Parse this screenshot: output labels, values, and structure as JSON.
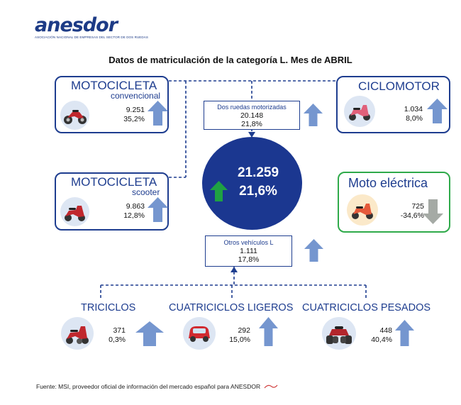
{
  "logo": {
    "name": "anesdor",
    "subtitle": "ASOCIACIÓN NACIONAL DE EMPRESAS DEL SECTOR DE DOS RUEDAS"
  },
  "title": "Datos de matriculación de la categoría L. Mes de ABRIL",
  "center": {
    "total": "21.259",
    "pct": "21,6%",
    "trend": "up",
    "color": "#1b3790"
  },
  "moto_convencional": {
    "title": "MOTOCICLETA",
    "subtitle": "convencional",
    "value": "9.251",
    "pct": "35,2%",
    "trend": "up",
    "icon": "motorcycle-icon"
  },
  "moto_scooter": {
    "title": "MOTOCICLETA",
    "subtitle": "scooter",
    "value": "9.863",
    "pct": "12,8%",
    "trend": "up",
    "icon": "scooter-icon"
  },
  "ciclomotor": {
    "title": "CICLOMOTOR",
    "value": "1.034",
    "pct": "8,0%",
    "trend": "up",
    "icon": "moped-icon"
  },
  "moto_electrica": {
    "title": "Moto eléctrica",
    "value": "725",
    "pct": "-34,6%",
    "trend": "down",
    "icon": "electric-moped-icon",
    "color": "#2faa4a"
  },
  "dos_ruedas": {
    "label": "Dos ruedas motorizadas",
    "value": "20.148",
    "pct": "21,8%",
    "trend": "up"
  },
  "otros": {
    "label": "Otros vehículos L",
    "value": "1.111",
    "pct": "17,8%",
    "trend": "up"
  },
  "triciclos": {
    "title": "TRICICLOS",
    "value": "371",
    "pct": "0,3%",
    "trend": "up",
    "icon": "trike-icon"
  },
  "cuatri_ligeros": {
    "title": "CUATRICICLOS LIGEROS",
    "value": "292",
    "pct": "15,0%",
    "trend": "up",
    "icon": "microcar-icon"
  },
  "cuatri_pesados": {
    "title": "CUATRICICLOS PESADOS",
    "value": "448",
    "pct": "40,4%",
    "trend": "up",
    "icon": "quad-icon"
  },
  "footer": "Fuente: MSI, proveedor oficial de información del mercado español para ANESDOR"
}
